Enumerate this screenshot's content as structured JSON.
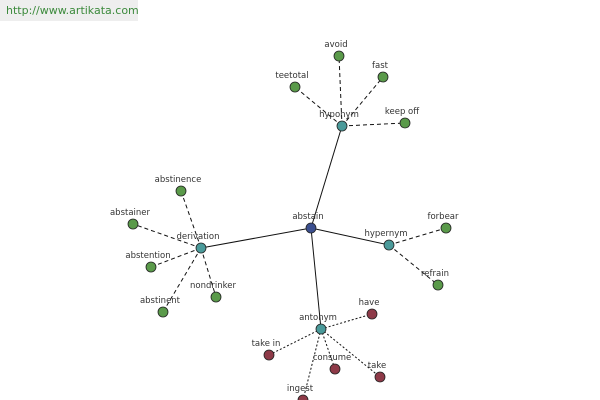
{
  "header": {
    "url": "http://www.artikata.com"
  },
  "nodes": [
    {
      "label": "abstain",
      "kind": "root"
    },
    {
      "label": "hyponym",
      "kind": "relation"
    },
    {
      "label": "avoid",
      "kind": "synonym"
    },
    {
      "label": "fast",
      "kind": "synonym"
    },
    {
      "label": "teetotal",
      "kind": "synonym"
    },
    {
      "label": "keep off",
      "kind": "synonym"
    },
    {
      "label": "derivation",
      "kind": "relation"
    },
    {
      "label": "abstinence",
      "kind": "synonym"
    },
    {
      "label": "abstainer",
      "kind": "synonym"
    },
    {
      "label": "abstention",
      "kind": "synonym"
    },
    {
      "label": "abstinent",
      "kind": "synonym"
    },
    {
      "label": "nondrinker",
      "kind": "synonym"
    },
    {
      "label": "hypernym",
      "kind": "relation"
    },
    {
      "label": "forbear",
      "kind": "synonym"
    },
    {
      "label": "refrain",
      "kind": "synonym"
    },
    {
      "label": "antonym",
      "kind": "relation"
    },
    {
      "label": "have",
      "kind": "antonym"
    },
    {
      "label": "take in",
      "kind": "antonym"
    },
    {
      "label": "consume",
      "kind": "antonym"
    },
    {
      "label": "take",
      "kind": "antonym"
    },
    {
      "label": "ingest",
      "kind": "antonym"
    }
  ]
}
